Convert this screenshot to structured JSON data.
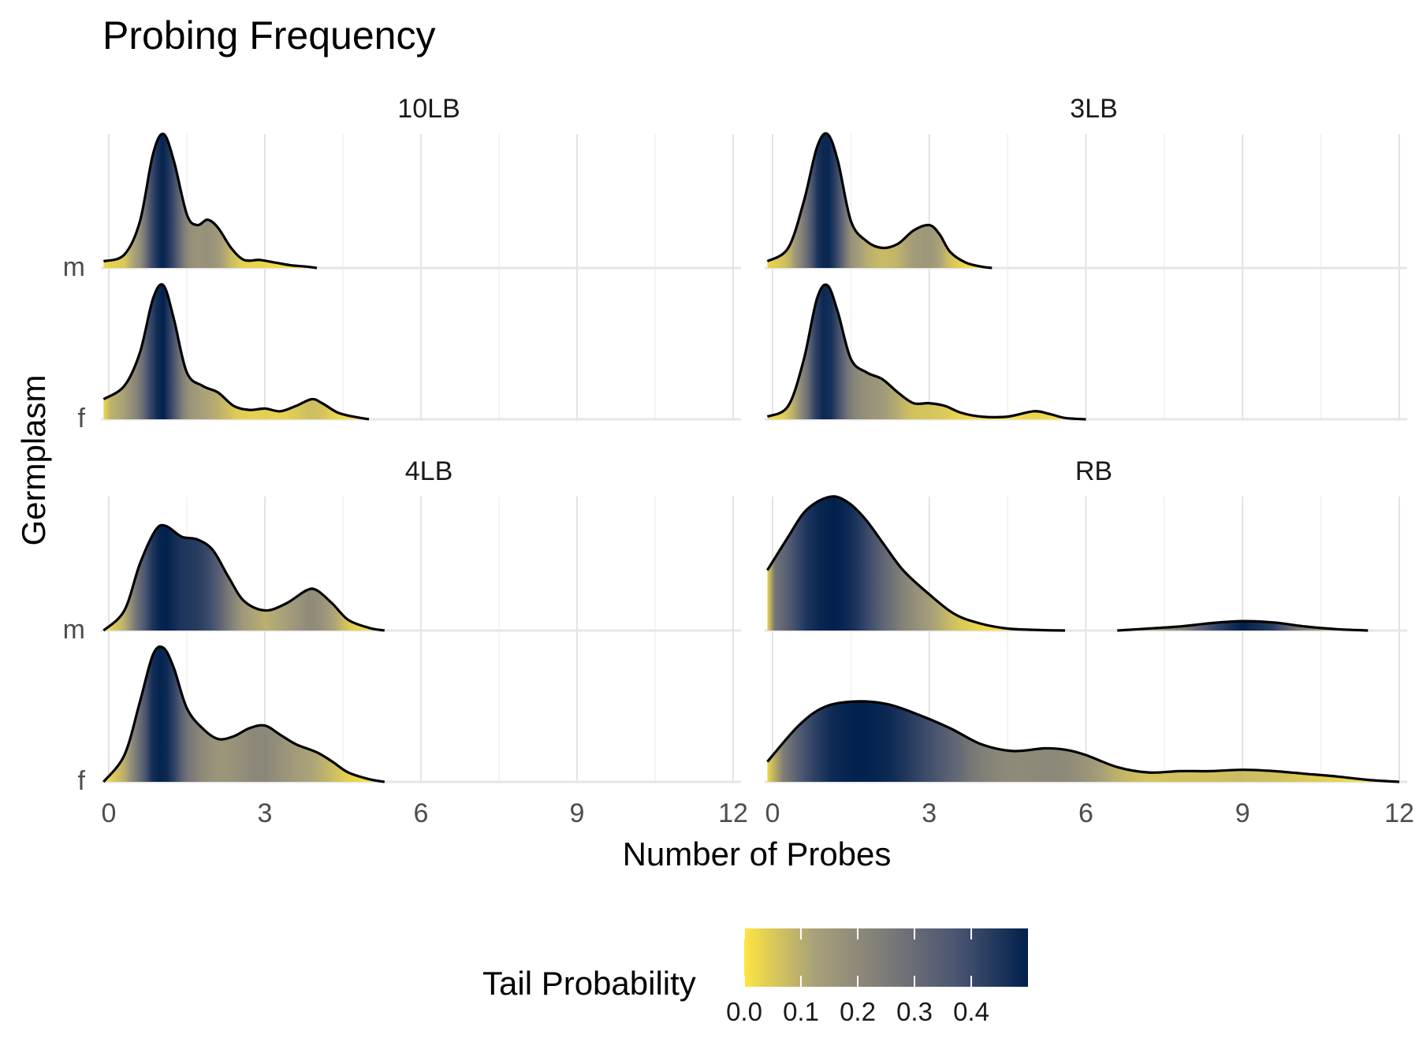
{
  "chart_data": {
    "type": "ridgeline",
    "title": "Probing Frequency",
    "xlabel": "Number of Probes",
    "ylabel": "Germplasm",
    "xlim": [
      0,
      12
    ],
    "x_ticks": [
      "0",
      "3",
      "6",
      "9",
      "12"
    ],
    "y_categories": [
      "f",
      "m"
    ],
    "grid": true,
    "legend_position": "bottom",
    "legend": {
      "title": "Tail Probability",
      "ticks": [
        "0.0",
        "0.1",
        "0.2",
        "0.3",
        "0.4"
      ],
      "range": [
        0,
        0.5
      ],
      "colors": [
        "#FDE541",
        "#A8A07A",
        "#7C7B78",
        "#4A5571",
        "#00204D"
      ]
    },
    "panels": [
      {
        "name": "10LB",
        "series": [
          {
            "group": "m",
            "x": [
              -0.1,
              0.3,
              0.6,
              0.85,
              1.05,
              1.25,
              1.5,
              1.7,
              1.9,
              2.1,
              2.35,
              2.6,
              2.9,
              3.2,
              3.5,
              3.8,
              4.0
            ],
            "y": [
              0.05,
              0.1,
              0.35,
              0.85,
              1.0,
              0.8,
              0.4,
              0.32,
              0.36,
              0.3,
              0.15,
              0.06,
              0.06,
              0.04,
              0.02,
              0.01,
              0
            ]
          },
          {
            "group": "f",
            "x": [
              -0.1,
              0.3,
              0.6,
              0.85,
              1.05,
              1.25,
              1.5,
              1.8,
              2.1,
              2.4,
              2.7,
              3.0,
              3.3,
              3.6,
              3.9,
              4.1,
              4.4,
              4.7,
              5.0
            ],
            "y": [
              0.15,
              0.25,
              0.5,
              0.9,
              1.0,
              0.75,
              0.35,
              0.25,
              0.2,
              0.1,
              0.07,
              0.08,
              0.06,
              0.1,
              0.15,
              0.12,
              0.05,
              0.02,
              0
            ]
          }
        ]
      },
      {
        "name": "3LB",
        "series": [
          {
            "group": "m",
            "x": [
              -0.1,
              0.3,
              0.6,
              0.85,
              1.05,
              1.25,
              1.5,
              1.8,
              2.1,
              2.4,
              2.7,
              3.0,
              3.2,
              3.4,
              3.7,
              4.0,
              4.2
            ],
            "y": [
              0.05,
              0.15,
              0.5,
              0.9,
              1.0,
              0.8,
              0.35,
              0.2,
              0.15,
              0.18,
              0.28,
              0.32,
              0.25,
              0.12,
              0.04,
              0.01,
              0
            ]
          },
          {
            "group": "f",
            "x": [
              -0.1,
              0.3,
              0.6,
              0.85,
              1.05,
              1.25,
              1.5,
              1.8,
              2.1,
              2.4,
              2.7,
              3.0,
              3.3,
              3.6,
              4.0,
              4.5,
              5.0,
              5.3,
              5.6,
              6.0
            ],
            "y": [
              0.02,
              0.1,
              0.45,
              0.9,
              1.0,
              0.8,
              0.45,
              0.35,
              0.3,
              0.2,
              0.12,
              0.12,
              0.1,
              0.05,
              0.02,
              0.02,
              0.06,
              0.04,
              0.01,
              0
            ]
          }
        ]
      },
      {
        "name": "4LB",
        "series": [
          {
            "group": "m",
            "x": [
              -0.1,
              0.3,
              0.6,
              0.9,
              1.1,
              1.4,
              1.7,
              2.0,
              2.3,
              2.6,
              3.0,
              3.4,
              3.8,
              4.0,
              4.3,
              4.6,
              5.0,
              5.3
            ],
            "y": [
              0.0,
              0.15,
              0.5,
              0.75,
              0.78,
              0.7,
              0.68,
              0.6,
              0.4,
              0.22,
              0.15,
              0.2,
              0.3,
              0.3,
              0.2,
              0.08,
              0.02,
              0
            ]
          },
          {
            "group": "f",
            "x": [
              -0.1,
              0.3,
              0.6,
              0.85,
              1.05,
              1.25,
              1.5,
              1.8,
              2.1,
              2.4,
              2.7,
              3.0,
              3.3,
              3.6,
              4.0,
              4.3,
              4.6,
              5.0,
              5.3
            ],
            "y": [
              0.0,
              0.2,
              0.6,
              0.95,
              1.0,
              0.85,
              0.55,
              0.4,
              0.32,
              0.34,
              0.4,
              0.42,
              0.35,
              0.28,
              0.22,
              0.15,
              0.07,
              0.02,
              0
            ]
          }
        ]
      },
      {
        "name": "RB",
        "series": [
          {
            "group": "m",
            "x": [
              -0.1,
              0.3,
              0.6,
              0.9,
              1.2,
              1.5,
              1.8,
              2.1,
              2.5,
              3.0,
              3.5,
              4.0,
              4.5,
              5.0,
              5.6
            ],
            "y": [
              0.45,
              0.7,
              0.88,
              0.97,
              1.0,
              0.94,
              0.82,
              0.66,
              0.45,
              0.27,
              0.12,
              0.05,
              0.015,
              0.005,
              0
            ]
          },
          {
            "group": "m",
            "x": [
              6.6,
              7.2,
              7.8,
              8.4,
              9.0,
              9.6,
              10.2,
              10.8,
              11.4
            ],
            "y": [
              0.0,
              0.015,
              0.03,
              0.055,
              0.07,
              0.06,
              0.03,
              0.01,
              0
            ]
          },
          {
            "group": "f",
            "x": [
              -0.1,
              0.5,
              1.0,
              1.6,
              2.2,
              2.8,
              3.4,
              4.0,
              4.6,
              5.2,
              5.6,
              6.0,
              6.6,
              7.2,
              7.8,
              8.4,
              9.0,
              9.6,
              10.2,
              10.8,
              11.4,
              12.0
            ],
            "y": [
              0.15,
              0.42,
              0.56,
              0.6,
              0.58,
              0.5,
              0.4,
              0.28,
              0.23,
              0.25,
              0.24,
              0.2,
              0.11,
              0.07,
              0.08,
              0.08,
              0.09,
              0.08,
              0.06,
              0.04,
              0.015,
              0.0
            ]
          }
        ]
      }
    ]
  }
}
